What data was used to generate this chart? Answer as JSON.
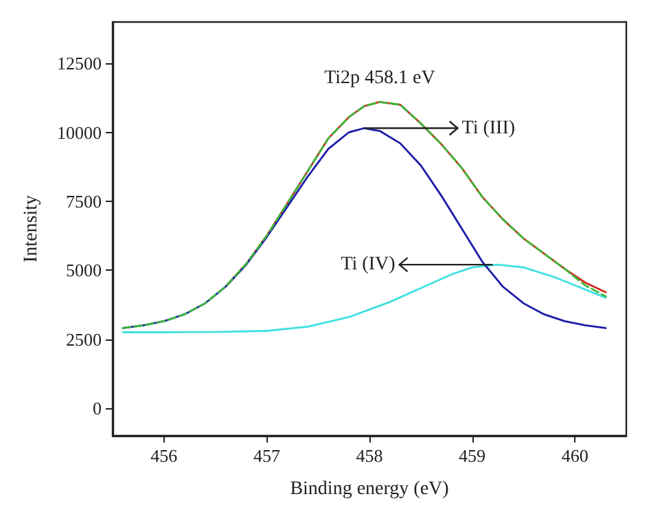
{
  "chart_data": {
    "type": "line",
    "xlabel": "Binding energy (eV)",
    "ylabel": "Intensity",
    "xlim": [
      455.5,
      460.5
    ],
    "xticks": [
      456,
      457,
      458,
      459,
      460
    ],
    "ylim": [
      -1000,
      14000
    ],
    "yticks": [
      0,
      2500,
      5000,
      7500,
      10000,
      12500
    ],
    "grid": false,
    "marker": "none",
    "annotations": [
      {
        "text": "Ti2p 458.1 eV",
        "x": 458.1,
        "y": 11100
      },
      {
        "text": "Ti (III)",
        "x": 457.95,
        "y": 10150
      },
      {
        "text": "Ti (IV)",
        "x": 459.2,
        "y": 5200
      }
    ],
    "series": [
      {
        "color": "#1c1ca8",
        "line_style": "solid",
        "x": [
          455.6,
          455.8,
          456.0,
          456.2,
          456.4,
          456.6,
          456.8,
          457.0,
          457.2,
          457.4,
          457.6,
          457.8,
          457.95,
          458.1,
          458.3,
          458.5,
          458.7,
          458.9,
          459.1,
          459.3,
          459.5,
          459.7,
          459.9,
          460.1,
          460.3
        ],
        "values": [
          2900,
          3000,
          3150,
          3400,
          3800,
          4400,
          5200,
          6200,
          7300,
          8400,
          9400,
          10000,
          10150,
          10050,
          9600,
          8800,
          7700,
          6500,
          5300,
          4400,
          3800,
          3400,
          3150,
          3000,
          2900
        ]
      },
      {
        "color": "#40e0e0",
        "line_style": "solid",
        "x": [
          455.6,
          456.0,
          456.5,
          457.0,
          457.4,
          457.8,
          458.2,
          458.5,
          458.8,
          459.0,
          459.25,
          459.5,
          459.8,
          460.0,
          460.3
        ],
        "values": [
          2750,
          2750,
          2760,
          2800,
          2950,
          3300,
          3850,
          4350,
          4850,
          5100,
          5200,
          5100,
          4750,
          4450,
          4000
        ]
      },
      {
        "color": "#d42a1e",
        "line_style": "solid",
        "x": [
          456.6,
          456.8,
          457.0,
          457.2,
          457.4,
          457.6,
          457.8,
          457.95,
          458.1,
          458.3,
          458.5,
          458.7,
          458.9,
          459.1,
          459.3,
          459.5,
          459.7,
          459.9,
          460.1,
          460.3
        ],
        "values": [
          4410,
          5230,
          6250,
          7420,
          8600,
          9780,
          10550,
          10950,
          11100,
          11000,
          10320,
          9570,
          8700,
          7650,
          6840,
          6150,
          5600,
          5050,
          4550,
          4200
        ]
      },
      {
        "color": "#3cb83c",
        "line_style": "dashed",
        "x": [
          455.6,
          455.8,
          456.0,
          456.2,
          456.4,
          456.6,
          456.8,
          457.0,
          457.2,
          457.4,
          457.6,
          457.8,
          457.95,
          458.1,
          458.3,
          458.5,
          458.7,
          458.9,
          459.1,
          459.3,
          459.5,
          459.7,
          459.9,
          460.1,
          460.3
        ],
        "values": [
          2900,
          3000,
          3150,
          3400,
          3800,
          4410,
          5230,
          6250,
          7420,
          8600,
          9780,
          10550,
          10950,
          11100,
          11000,
          10320,
          9570,
          8700,
          7650,
          6840,
          6150,
          5600,
          5050,
          4450,
          4050
        ]
      }
    ]
  }
}
